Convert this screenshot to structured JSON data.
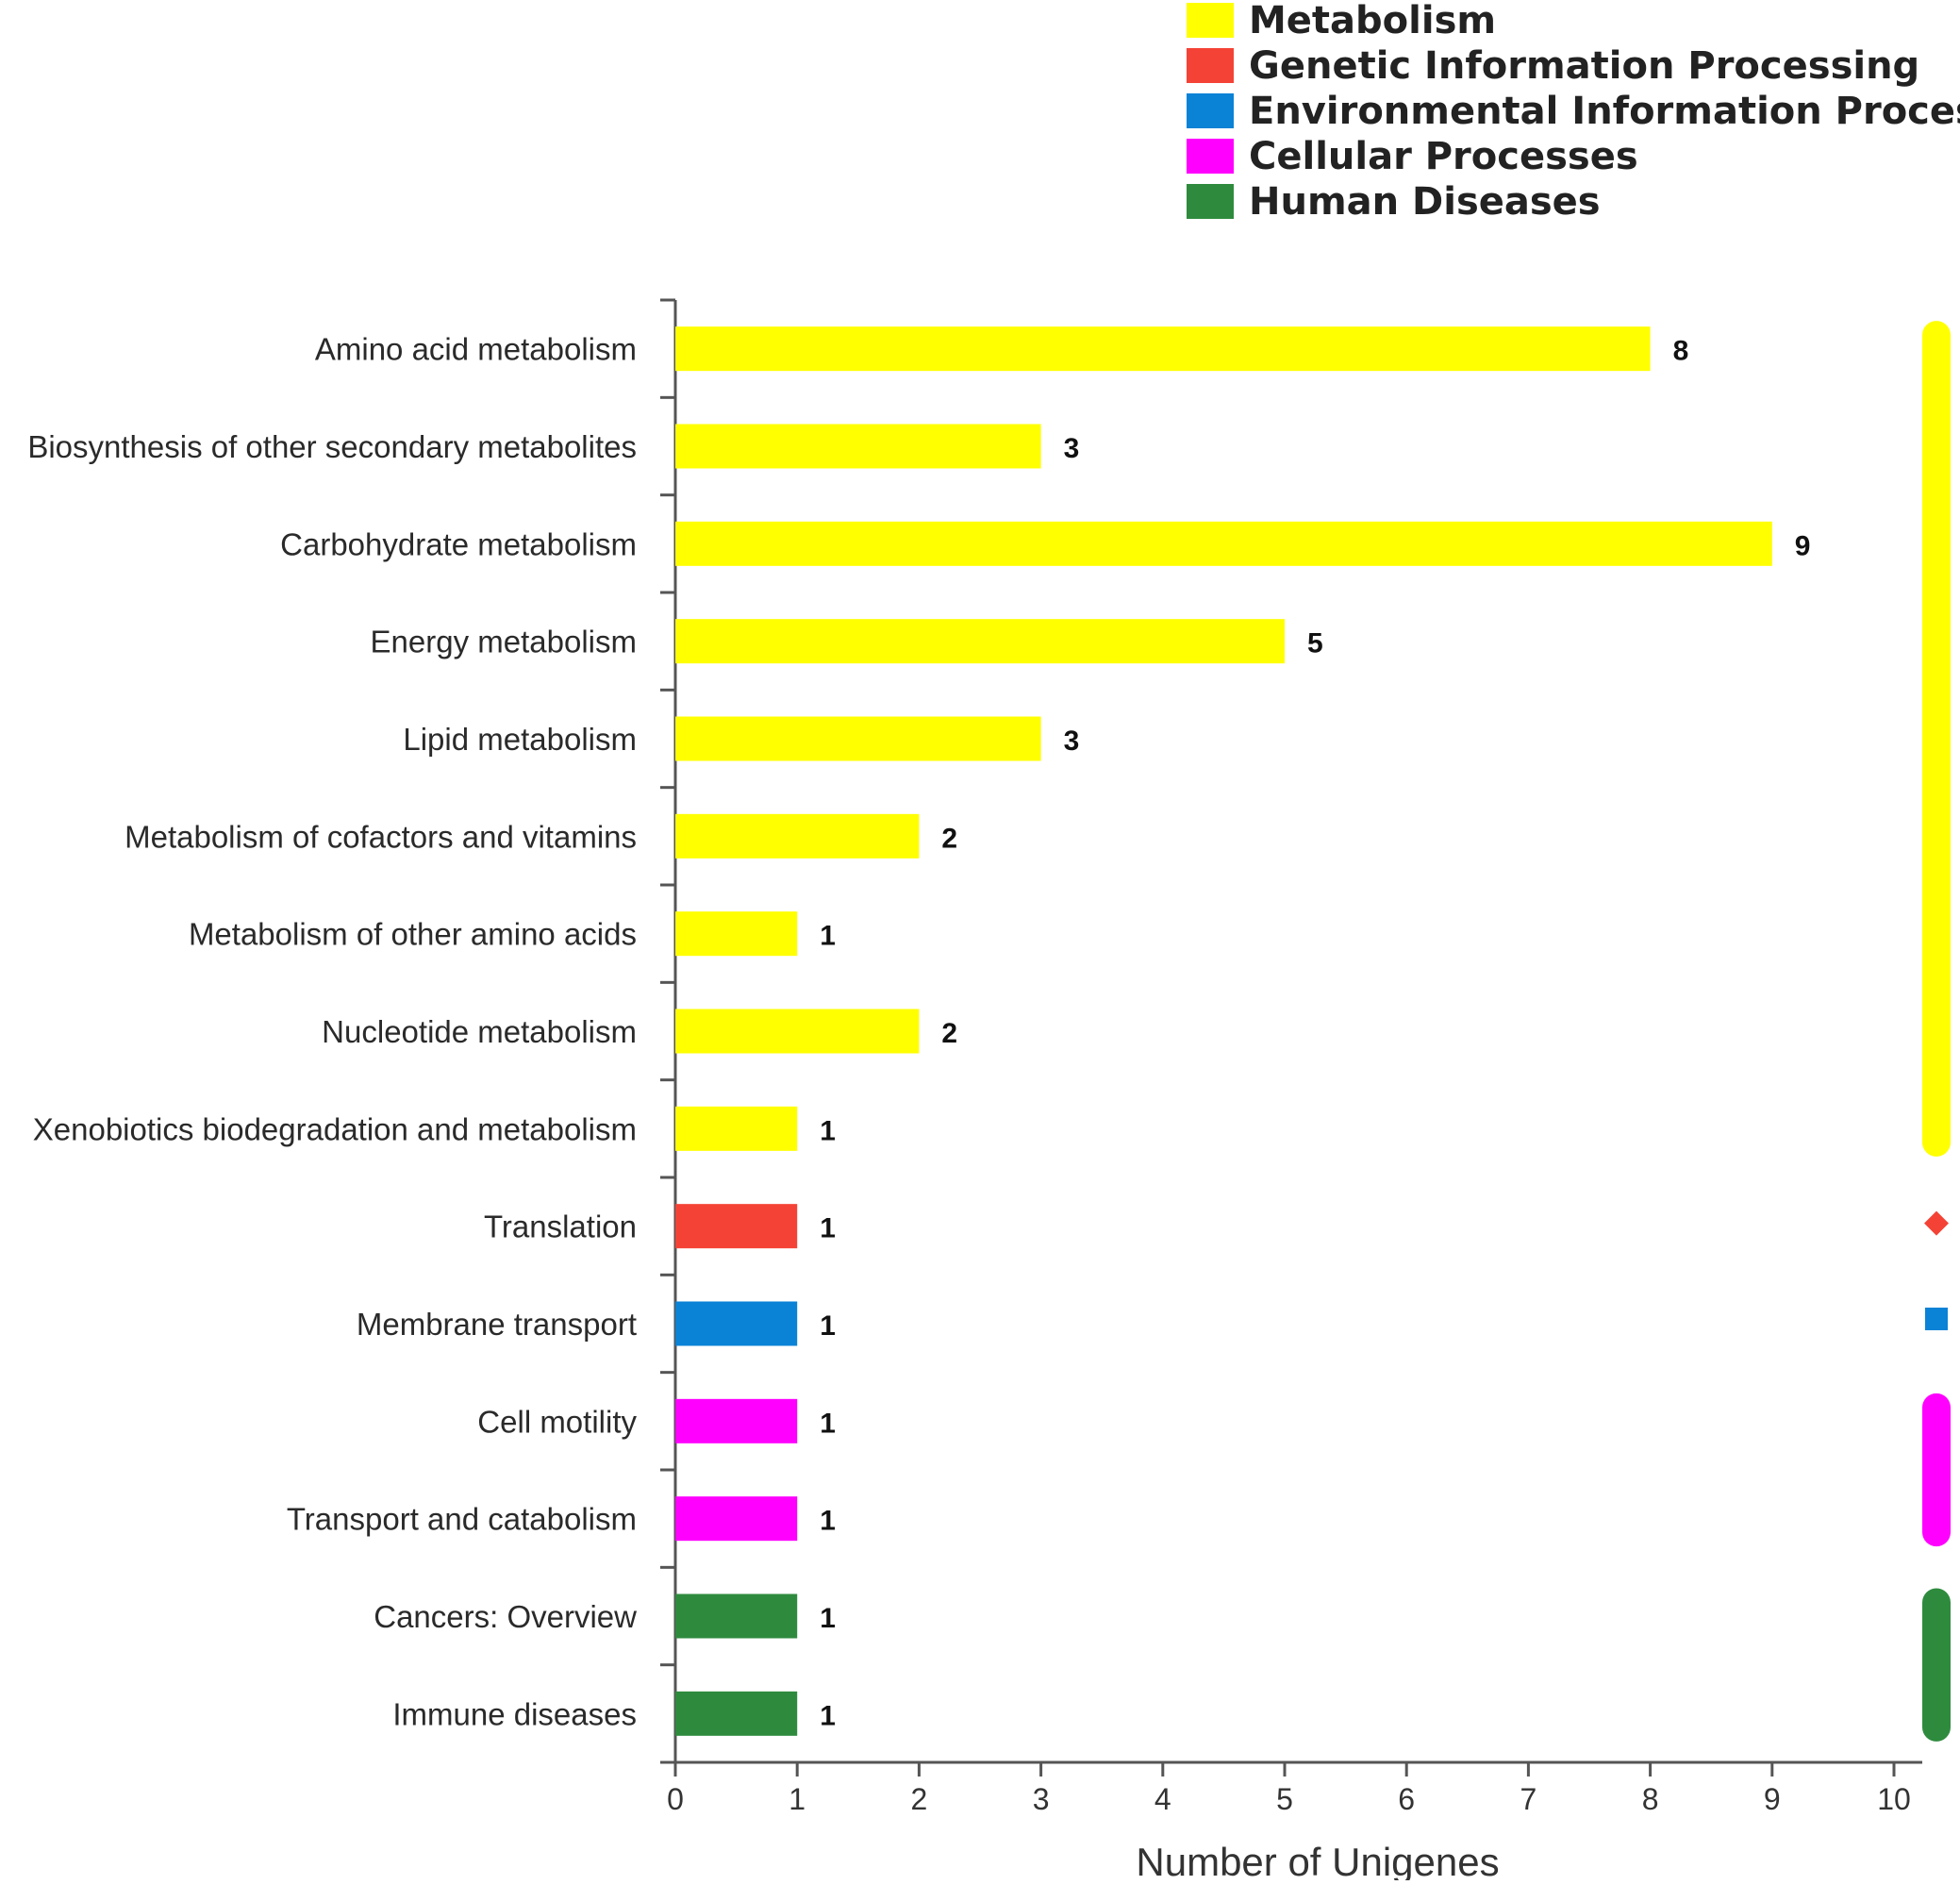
{
  "chart_data": {
    "type": "bar",
    "orientation": "horizontal",
    "title": "",
    "xlabel": "Number of Unigenes",
    "ylabel": "",
    "xlim": [
      0,
      10
    ],
    "xticks": [
      0,
      1,
      2,
      3,
      4,
      5,
      6,
      7,
      8,
      9,
      10
    ],
    "grid": false,
    "legend_position": "top-right",
    "legend": [
      {
        "name": "Metabolism",
        "color": "#ffff00"
      },
      {
        "name": "Genetic Information Processing",
        "color": "#f44336"
      },
      {
        "name": "Environmental Information Processing",
        "color": "#0a82d6"
      },
      {
        "name": "Cellular Processes",
        "color": "#ff00ff"
      },
      {
        "name": "Human Diseases",
        "color": "#2e8b3e"
      }
    ],
    "categories": [
      "Amino acid metabolism",
      "Biosynthesis of other secondary metabolites",
      "Carbohydrate metabolism",
      "Energy metabolism",
      "Lipid metabolism",
      "Metabolism of cofactors and vitamins",
      "Metabolism of other amino acids",
      "Nucleotide metabolism",
      "Xenobiotics biodegradation and metabolism",
      "Translation",
      "Membrane transport",
      "Cell motility",
      "Transport and catabolism",
      "Cancers: Overview",
      "Immune diseases"
    ],
    "values": [
      8,
      3,
      9,
      5,
      3,
      2,
      1,
      2,
      1,
      1,
      1,
      1,
      1,
      1,
      1
    ],
    "groups": [
      "Metabolism",
      "Metabolism",
      "Metabolism",
      "Metabolism",
      "Metabolism",
      "Metabolism",
      "Metabolism",
      "Metabolism",
      "Metabolism",
      "Genetic Information Processing",
      "Environmental Information Processing",
      "Cellular Processes",
      "Cellular Processes",
      "Human Diseases",
      "Human Diseases"
    ],
    "group_markers": [
      {
        "group": "Metabolism",
        "shape": "capsule",
        "from_index": 0,
        "to_index": 8
      },
      {
        "group": "Genetic Information Processing",
        "shape": "diamond",
        "from_index": 9,
        "to_index": 9
      },
      {
        "group": "Environmental Information Processing",
        "shape": "square",
        "from_index": 10,
        "to_index": 10
      },
      {
        "group": "Cellular Processes",
        "shape": "capsule",
        "from_index": 11,
        "to_index": 12
      },
      {
        "group": "Human Diseases",
        "shape": "capsule",
        "from_index": 13,
        "to_index": 14
      }
    ]
  }
}
